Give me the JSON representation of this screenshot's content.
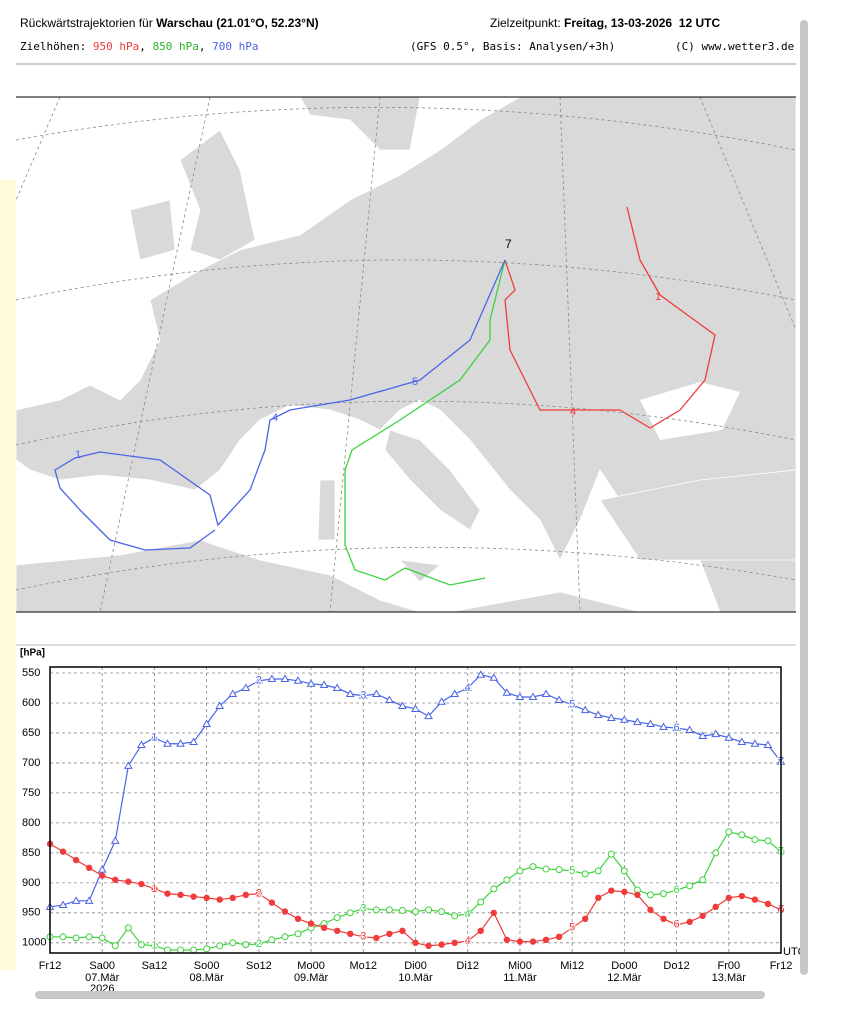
{
  "header": {
    "title_prefix": "Rückwärtstrajektorien für",
    "title_place": "Warschau (21.01°O, 52.23°N)",
    "target_label": "Zielzeitpunkt:",
    "target_time": "Freitag, 13-03-2026  12 UTC",
    "levels_label": "Zielhöhen:",
    "levels": [
      "950 hPa",
      "850 hPa",
      "700 hPa"
    ],
    "model": "(GFS 0.5°, Basis: Analysen/+3h)",
    "copyright": "(C) www.wetter3.de"
  },
  "chart_data": {
    "type": "line",
    "y_label": "[hPa]",
    "x_unit": "UTC",
    "x_year": "2026",
    "markers": [
      "1",
      "2",
      "3",
      "4",
      "5",
      "6",
      "7"
    ],
    "x": [
      0,
      3,
      6,
      9,
      12,
      15,
      18,
      21,
      24,
      27,
      30,
      33,
      36,
      39,
      42,
      45,
      48,
      51,
      54,
      57,
      60,
      63,
      66,
      69,
      72,
      75,
      78,
      81,
      84,
      87,
      90,
      93,
      96,
      99,
      102,
      105,
      108,
      111,
      114,
      117,
      120,
      123,
      126,
      129,
      132,
      135,
      138,
      141,
      144,
      147,
      150,
      153,
      156,
      159,
      162,
      165,
      168
    ],
    "xlim": [
      0,
      168
    ],
    "xticks": [
      {
        "value": 0,
        "label": "Fr12"
      },
      {
        "value": 12,
        "label": "Sa00"
      },
      {
        "value": 24,
        "label": "Sa12"
      },
      {
        "value": 36,
        "label": "So00"
      },
      {
        "value": 48,
        "label": "So12"
      },
      {
        "value": 60,
        "label": "Mo00"
      },
      {
        "value": 72,
        "label": "Mo12"
      },
      {
        "value": 84,
        "label": "Di00"
      },
      {
        "value": 96,
        "label": "Di12"
      },
      {
        "value": 108,
        "label": "Mi00"
      },
      {
        "value": 120,
        "label": "Mi12"
      },
      {
        "value": 132,
        "label": "Do00"
      },
      {
        "value": 144,
        "label": "Do12"
      },
      {
        "value": 156,
        "label": "Fr00"
      },
      {
        "value": 168,
        "label": "Fr12"
      }
    ],
    "xtick_dates": [
      null,
      "07.Mär",
      null,
      "08.Mär",
      null,
      "09.Mär",
      null,
      "10.Mär",
      null,
      "11.Mär",
      null,
      "12.Mär",
      null,
      "13.Mär",
      null
    ],
    "ylim": [
      1017,
      540
    ],
    "yticks": [
      550,
      600,
      650,
      700,
      750,
      800,
      850,
      900,
      950,
      1000
    ],
    "grid": true,
    "series": [
      {
        "name": "700 hPa",
        "color": "#4a64e8",
        "marker": "triangle",
        "values": [
          940,
          937,
          930,
          930,
          878,
          830,
          705,
          670,
          658,
          668,
          668,
          665,
          635,
          605,
          585,
          575,
          563,
          560,
          560,
          563,
          568,
          570,
          575,
          585,
          588,
          585,
          595,
          605,
          610,
          622,
          598,
          585,
          575,
          553,
          558,
          583,
          590,
          590,
          585,
          595,
          603,
          612,
          620,
          625,
          628,
          632,
          635,
          640,
          642,
          645,
          655,
          652,
          658,
          665,
          668,
          670,
          698
        ]
      },
      {
        "name": "850 hPa",
        "color": "#3cd23c",
        "marker": "circle",
        "values": [
          990,
          990,
          992,
          990,
          992,
          1005,
          975,
          1003,
          1005,
          1012,
          1012,
          1012,
          1010,
          1005,
          1000,
          1003,
          1002,
          995,
          990,
          985,
          975,
          968,
          958,
          950,
          943,
          945,
          945,
          946,
          948,
          945,
          948,
          955,
          952,
          932,
          910,
          895,
          880,
          873,
          877,
          878,
          880,
          885,
          880,
          852,
          880,
          912,
          920,
          918,
          912,
          905,
          895,
          850,
          815,
          820,
          828,
          830,
          848
        ]
      },
      {
        "name": "950 hPa",
        "color": "#f03c3c",
        "marker": "dot",
        "values": [
          835,
          848,
          862,
          875,
          888,
          895,
          898,
          902,
          910,
          918,
          920,
          923,
          925,
          928,
          925,
          920,
          918,
          933,
          948,
          960,
          968,
          975,
          980,
          985,
          990,
          992,
          985,
          980,
          1000,
          1005,
          1003,
          1000,
          997,
          980,
          950,
          995,
          998,
          998,
          995,
          990,
          975,
          960,
          925,
          913,
          915,
          920,
          945,
          960,
          970,
          965,
          955,
          940,
          925,
          922,
          928,
          935,
          945
        ]
      }
    ]
  }
}
